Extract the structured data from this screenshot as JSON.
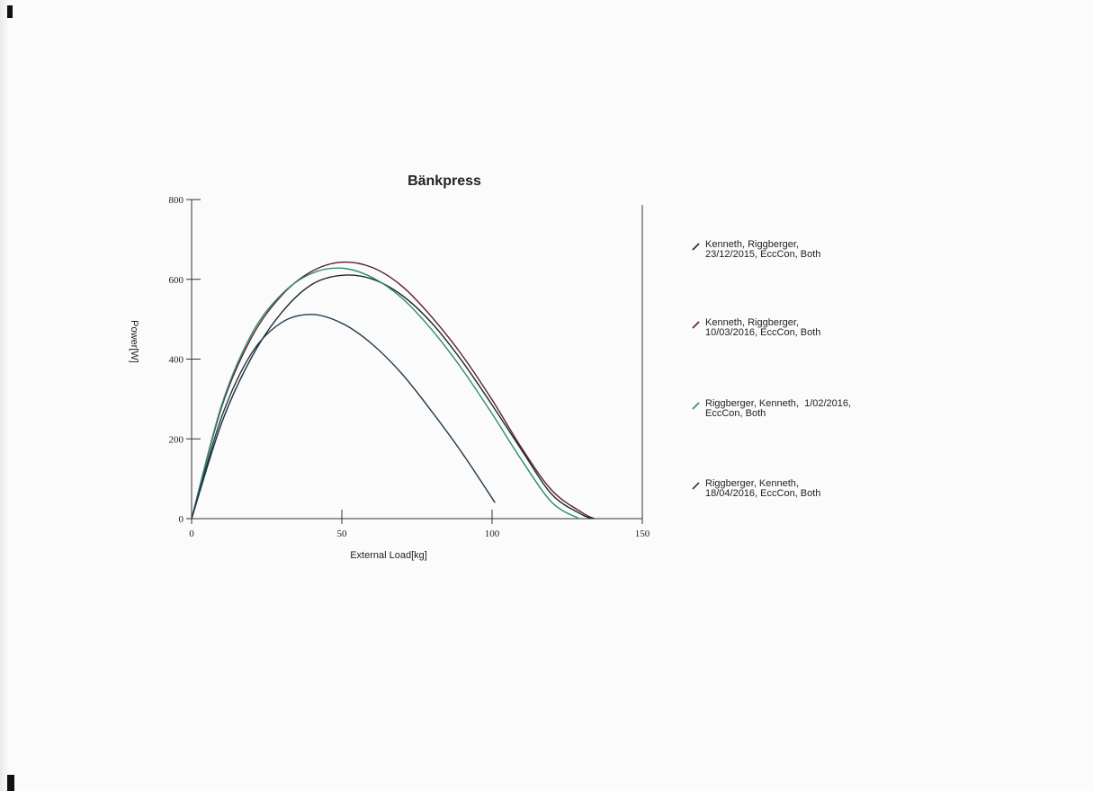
{
  "chart_data": {
    "type": "line",
    "title": "Bänkpress",
    "xlabel": "External Load[kg]",
    "ylabel": "Power[W]",
    "xlim": [
      0,
      150
    ],
    "ylim": [
      0,
      800
    ],
    "xticks": [
      0,
      50,
      100,
      150
    ],
    "yticks": [
      0,
      200,
      400,
      600,
      800
    ],
    "grid": false,
    "legend_position": "right",
    "series": [
      {
        "name": "Kenneth, Riggberger, 23/12/2015, EccCon, Both",
        "legend_lines": [
          "Kenneth, Riggberger,",
          "23/12/2015, EccCon, Both"
        ],
        "color": "#1b2a33",
        "x": [
          0,
          10,
          20,
          30,
          40,
          50,
          60,
          70,
          80,
          90,
          100,
          110,
          120,
          130,
          134
        ],
        "y": [
          0,
          240,
          405,
          517,
          587,
          610,
          601,
          560,
          490,
          395,
          285,
          170,
          60,
          10,
          0
        ]
      },
      {
        "name": "Kenneth, Riggberger, 10/03/2016, EccCon, Both",
        "legend_lines": [
          "Kenneth, Riggberger,",
          "10/03/2016, EccCon, Both"
        ],
        "color": "#5a1f2b",
        "x": [
          0,
          10,
          20,
          30,
          40,
          50,
          60,
          70,
          80,
          90,
          100,
          110,
          120,
          130,
          134
        ],
        "y": [
          0,
          280,
          455,
          560,
          620,
          643,
          630,
          583,
          505,
          410,
          298,
          175,
          70,
          15,
          0
        ]
      },
      {
        "name": "Riggberger, Kenneth,  1/02/2016, EccCon, Both",
        "legend_lines": [
          "Riggberger, Kenneth,  1/02/2016,",
          "EccCon, Both"
        ],
        "color": "#2e8b6e",
        "x": [
          0,
          10,
          20,
          30,
          40,
          50,
          60,
          70,
          80,
          90,
          100,
          110,
          120,
          129
        ],
        "y": [
          0,
          285,
          463,
          563,
          615,
          628,
          605,
          553,
          473,
          375,
          263,
          145,
          40,
          0
        ]
      },
      {
        "name": "Riggberger, Kenneth, 18/04/2016, EccCon, Both",
        "legend_lines": [
          "Riggberger, Kenneth,",
          "18/04/2016, EccCon, Both"
        ],
        "color": "#203a4a",
        "x": [
          0,
          10,
          20,
          30,
          40,
          50,
          60,
          70,
          80,
          90,
          101
        ],
        "y": [
          0,
          255,
          415,
          492,
          512,
          490,
          438,
          363,
          268,
          165,
          40
        ]
      }
    ]
  }
}
